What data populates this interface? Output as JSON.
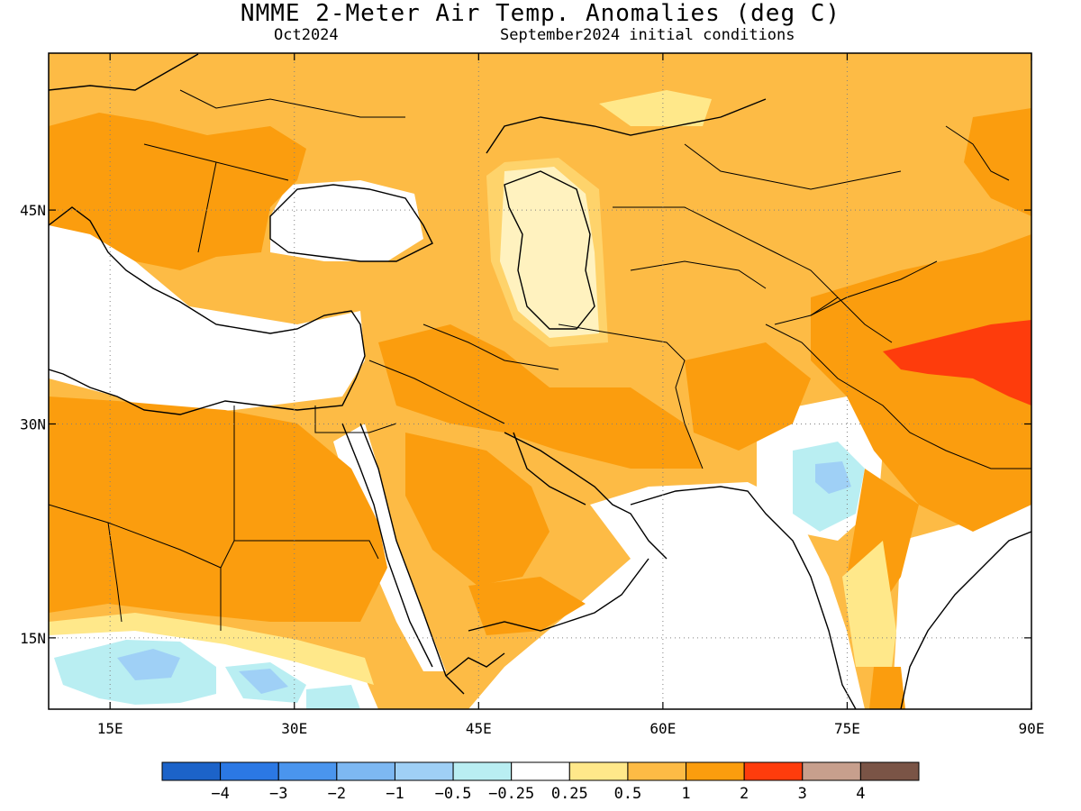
{
  "header": {
    "title": "NMME 2-Meter Air Temp. Anomalies (deg C)",
    "month": "Oct2024",
    "init": "September2024 initial conditions"
  },
  "map": {
    "lon_range": [
      10,
      90
    ],
    "lat_range": [
      10,
      56
    ],
    "lon_ticks": [
      {
        "value": 15,
        "label": "15E"
      },
      {
        "value": 30,
        "label": "30E"
      },
      {
        "value": 45,
        "label": "45E"
      },
      {
        "value": 60,
        "label": "60E"
      },
      {
        "value": 75,
        "label": "75E"
      },
      {
        "value": 90,
        "label": "90E"
      }
    ],
    "lat_ticks": [
      {
        "value": 45,
        "label": "45N"
      },
      {
        "value": 30,
        "label": "30N"
      },
      {
        "value": 15,
        "label": "15N"
      }
    ],
    "gridlines": "dotted"
  },
  "colorbar": {
    "colors": [
      "#1c63c9",
      "#2b78e4",
      "#4a95ee",
      "#7db8f2",
      "#9fd0f6",
      "#b9eef2",
      "#ffffff",
      "#ffe88a",
      "#fdbb45",
      "#fb9d0e",
      "#fe3c0c",
      "#c79f8d",
      "#7a5446"
    ],
    "labels": [
      "−4",
      "−3",
      "−2",
      "−1",
      "−0.5",
      "−0.25",
      "0.25",
      "0.5",
      "1",
      "2",
      "3",
      "4"
    ]
  }
}
